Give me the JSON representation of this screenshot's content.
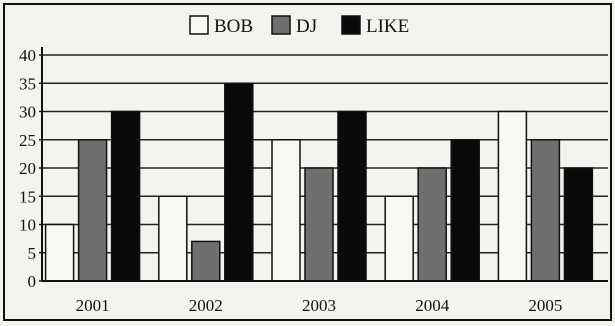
{
  "chart_data": {
    "type": "bar",
    "categories": [
      "2001",
      "2002",
      "2003",
      "2004",
      "2005"
    ],
    "series": [
      {
        "name": "BOB",
        "values": [
          10,
          15,
          25,
          15,
          30
        ]
      },
      {
        "name": "DJ",
        "values": [
          25,
          7,
          20,
          20,
          25
        ]
      },
      {
        "name": "LIKE",
        "values": [
          30,
          35,
          30,
          25,
          20
        ]
      }
    ],
    "yticks": [
      "0",
      "5",
      "10",
      "15",
      "20",
      "25",
      "30",
      "35",
      "40"
    ],
    "ylim": [
      0,
      40
    ],
    "grid": true,
    "legend_position": "top-center",
    "colors": {
      "BOB": "#f7f7f3",
      "DJ": "#6f6f6f",
      "LIKE": "#0a0a0a",
      "grid": "#222222",
      "frame": "#111111",
      "background": "#f4f3ef"
    }
  }
}
